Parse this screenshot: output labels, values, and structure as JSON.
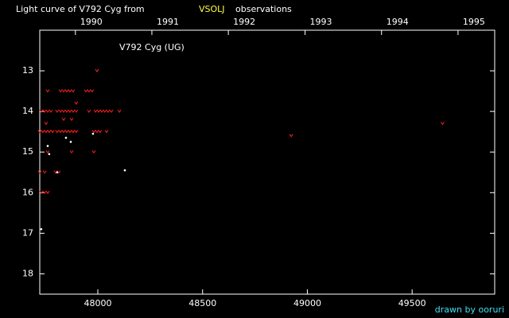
{
  "chart_data": {
    "type": "scatter",
    "title_parts": [
      "Light curve of V792 Cyg from",
      "VSOLJ",
      "observations"
    ],
    "annotation": "V792 Cyg (UG)",
    "credit": "drawn by ooruri",
    "xlim": [
      47723,
      49894
    ],
    "ylim": [
      18.5,
      12.0
    ],
    "xticks": [
      48000,
      48500,
      49000,
      49500
    ],
    "yticks": [
      13,
      14,
      15,
      16,
      17,
      18
    ],
    "x2ticks": [
      {
        "value": 47893,
        "label": "1990"
      },
      {
        "value": 48258,
        "label": "1991"
      },
      {
        "value": 48623,
        "label": "1992"
      },
      {
        "value": 48989,
        "label": "1993"
      },
      {
        "value": 49354,
        "label": "1994"
      },
      {
        "value": 49719,
        "label": "1995"
      }
    ],
    "series": [
      {
        "marker": "v",
        "color": "#ff2020",
        "x": [
          47761,
          47822,
          47837,
          47852,
          47867,
          47882,
          47943,
          47958,
          47973,
          47996,
          47897,
          47730,
          47746,
          47761,
          47776,
          47806,
          47822,
          47837,
          47852,
          47867,
          47882,
          47897,
          47958,
          47989,
          48004,
          48019,
          48034,
          48049,
          48065,
          48103,
          47837,
          47875,
          47753,
          49645,
          47723,
          47738,
          47753,
          47768,
          47784,
          47806,
          47822,
          47837,
          47852,
          47867,
          47882,
          47897,
          47981,
          47996,
          48011,
          48042,
          48923,
          47761,
          47875,
          47981,
          47723,
          47746,
          47799,
          47814,
          47730,
          47746,
          47761
        ],
        "y": [
          13.5,
          13.5,
          13.5,
          13.5,
          13.5,
          13.5,
          13.5,
          13.5,
          13.5,
          13.0,
          13.8,
          14.0,
          14.0,
          14.0,
          14.0,
          14.0,
          14.0,
          14.0,
          14.0,
          14.0,
          14.0,
          14.0,
          14.0,
          14.0,
          14.0,
          14.0,
          14.0,
          14.0,
          14.0,
          14.0,
          14.2,
          14.2,
          14.3,
          14.3,
          14.5,
          14.5,
          14.5,
          14.5,
          14.5,
          14.5,
          14.5,
          14.5,
          14.5,
          14.5,
          14.5,
          14.5,
          14.5,
          14.5,
          14.5,
          14.5,
          14.6,
          15.0,
          15.0,
          15.0,
          15.5,
          15.5,
          15.5,
          15.5,
          16.0,
          16.0,
          16.0
        ]
      },
      {
        "marker": "dot",
        "color": "#ffffff",
        "x": [
          47730,
          47761,
          47768,
          47806,
          47848,
          47871,
          47977,
          48129
        ],
        "y": [
          16.9,
          14.85,
          15.05,
          15.5,
          14.65,
          14.75,
          14.55,
          15.45
        ]
      }
    ]
  }
}
